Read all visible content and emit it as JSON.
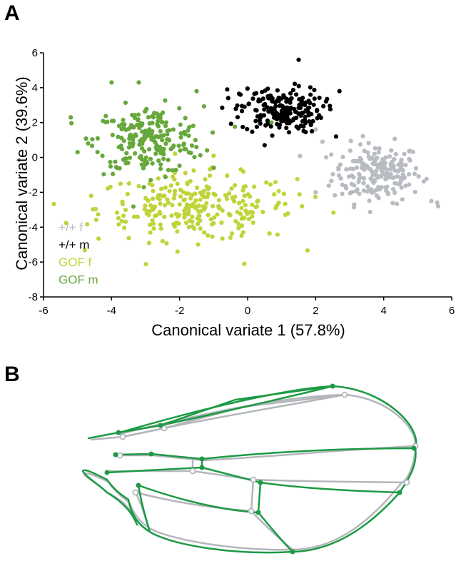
{
  "panels": {
    "a": "A",
    "b": "B"
  },
  "chart_data": {
    "type": "scatter",
    "xlabel": "Canonical variate 1 (57.8%)",
    "ylabel": "Canonical variate 2 (39.6%)",
    "xlim": [
      -6,
      6
    ],
    "ylim": [
      -8,
      6
    ],
    "xticks": [
      "-6",
      "-4",
      "-2",
      "0",
      "2",
      "4",
      "6"
    ],
    "yticks": [
      "6",
      "4",
      "2",
      "0",
      "-2",
      "-4",
      "-6",
      "-8"
    ],
    "legend_position": "bottom-left",
    "series": [
      {
        "name": "+/+ f",
        "color": "#b8bcc2",
        "center": [
          3.8,
          -0.9
        ],
        "spread": [
          0.65,
          0.85
        ],
        "n": 200,
        "points": [
          [
            2.0,
            1.6
          ],
          [
            2.2,
            0.9
          ],
          [
            5.4,
            -2.5
          ],
          [
            5.6,
            -2.8
          ],
          [
            2.0,
            -2.0
          ]
        ]
      },
      {
        "name": "+/+ m",
        "color": "#000000",
        "center": [
          1.0,
          2.7
        ],
        "spread": [
          0.6,
          0.65
        ],
        "n": 200,
        "points": [
          [
            1.5,
            5.6
          ],
          [
            2.7,
            3.8
          ],
          [
            -0.6,
            3.9
          ],
          [
            2.6,
            1.2
          ],
          [
            0.5,
            0.7
          ]
        ]
      },
      {
        "name": "GOF f",
        "color": "#bfd43a",
        "center": [
          -1.5,
          -2.9
        ],
        "spread": [
          1.45,
          0.95
        ],
        "n": 260,
        "points": [
          [
            -0.1,
            -6.1
          ],
          [
            -4.6,
            -2.2
          ],
          [
            1.6,
            -2.8
          ],
          [
            -2.5,
            -4.8
          ],
          [
            -1.0,
            0.1
          ]
        ]
      },
      {
        "name": "GOF m",
        "color": "#66a83b",
        "center": [
          -2.9,
          1.0
        ],
        "spread": [
          0.8,
          0.95
        ],
        "n": 220,
        "points": [
          [
            -4.0,
            4.3
          ],
          [
            -3.2,
            4.3
          ],
          [
            -5.2,
            2.3
          ],
          [
            -5.0,
            0.3
          ],
          [
            -1.5,
            3.8
          ],
          [
            0.7,
            2.0
          ]
        ]
      }
    ]
  },
  "wing_diagram": {
    "overlay_colors": {
      "wild_type": "#b3b6bb",
      "gof": "#1c9a44"
    }
  }
}
